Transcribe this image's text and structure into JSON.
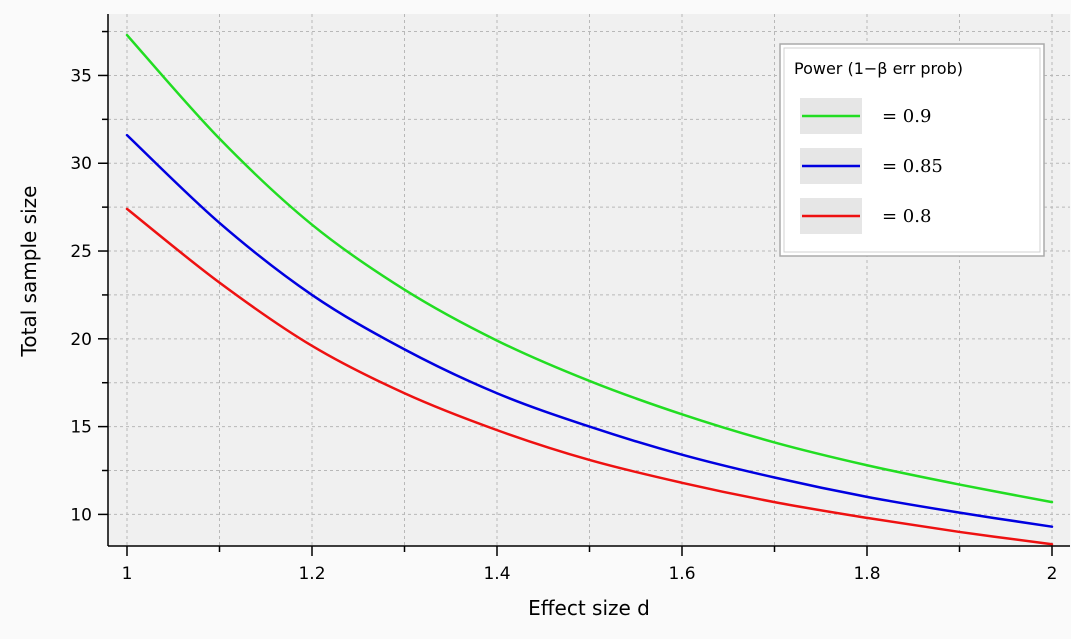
{
  "chart_data": {
    "type": "line",
    "title": "",
    "xlabel": "Effect size d",
    "ylabel": "Total sample size",
    "xlim": [
      1,
      2
    ],
    "ylim": [
      8.2,
      38.5
    ],
    "x_ticks": [
      1,
      1.2,
      1.4,
      1.6,
      1.8,
      2
    ],
    "x_tick_labels": [
      "1",
      "1.2",
      "1.4",
      "1.6",
      "1.8",
      "2"
    ],
    "x_minor_ticks": [
      1.1,
      1.3,
      1.5,
      1.7,
      1.9
    ],
    "y_ticks": [
      10,
      15,
      20,
      25,
      30,
      35
    ],
    "y_tick_labels": [
      "10",
      "15",
      "20",
      "25",
      "30",
      "35"
    ],
    "grid": true,
    "legend": {
      "title": "Power (1−β err prob)",
      "placement": "top-right"
    },
    "colors": {
      "plot_background": "#f0f0f0",
      "page_background": "#fafafa",
      "grid": "#b8b8b8"
    },
    "series": [
      {
        "label": "= 0.9",
        "color": "#22dd22",
        "x": [
          1.0,
          1.1,
          1.2,
          1.3,
          1.4,
          1.5,
          1.6,
          1.7,
          1.8,
          1.9,
          2.0
        ],
        "y": [
          37.3,
          31.4,
          26.5,
          22.8,
          19.9,
          17.6,
          15.7,
          14.1,
          12.8,
          11.7,
          10.7
        ]
      },
      {
        "label": "= 0.85",
        "color": "#0000e0",
        "x": [
          1.0,
          1.1,
          1.2,
          1.3,
          1.4,
          1.5,
          1.6,
          1.7,
          1.8,
          1.9,
          2.0
        ],
        "y": [
          31.6,
          26.6,
          22.5,
          19.4,
          16.9,
          15.0,
          13.4,
          12.1,
          11.0,
          10.1,
          9.3
        ]
      },
      {
        "label": "= 0.8",
        "color": "#ee1111",
        "x": [
          1.0,
          1.1,
          1.2,
          1.3,
          1.4,
          1.5,
          1.6,
          1.7,
          1.8,
          1.9,
          2.0
        ],
        "y": [
          27.4,
          23.2,
          19.6,
          16.9,
          14.8,
          13.1,
          11.8,
          10.7,
          9.8,
          9.0,
          8.3
        ]
      }
    ]
  }
}
